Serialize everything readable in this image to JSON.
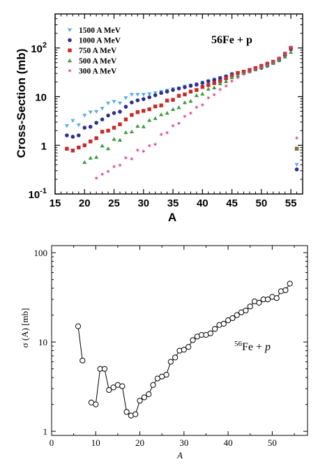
{
  "chart_data": [
    {
      "type": "scatter",
      "title": "",
      "annotation": {
        "nucleus": "56",
        "rest": "Fe + p"
      },
      "xlabel": "A",
      "ylabel": "Cross-Section (mb)",
      "xlim": [
        15,
        57
      ],
      "ylim": [
        0.1,
        500
      ],
      "yscale": "log",
      "x_ticks": [
        "15",
        "20",
        "25",
        "30",
        "35",
        "40",
        "45",
        "50",
        "55"
      ],
      "y_ticks": [
        {
          "value": 0.1,
          "mantissa": "10",
          "exp": "-1"
        },
        {
          "value": 1,
          "mantissa": "1",
          "exp": ""
        },
        {
          "value": 10,
          "mantissa": "10",
          "exp": ""
        },
        {
          "value": 100,
          "mantissa": "10",
          "exp": "2"
        }
      ],
      "grid": false,
      "legend_position": "top-left",
      "series": [
        {
          "name": "1500 A MeV",
          "color": "#5aaee3",
          "marker": "triangle-down",
          "x": [
            17,
            18,
            19,
            20,
            21,
            22,
            23,
            24,
            25,
            26,
            27,
            28,
            29,
            30,
            31,
            32,
            33,
            34,
            35,
            36,
            37,
            38,
            39,
            40,
            41,
            42,
            43,
            44,
            45,
            46,
            47,
            48,
            49,
            50,
            51,
            52,
            53,
            54,
            55,
            56
          ],
          "y": [
            2.5,
            3.2,
            2.6,
            4.1,
            4.8,
            4.9,
            5.7,
            7.3,
            7.9,
            7.3,
            9.4,
            11.0,
            11.0,
            11.0,
            11.3,
            11.8,
            12.6,
            13.4,
            14.3,
            14.8,
            16.2,
            17.1,
            18.1,
            19.6,
            20.8,
            22.7,
            24.4,
            26.0,
            29.2,
            30.3,
            33.0,
            35.0,
            38.0,
            40.0,
            44.0,
            50.0,
            58.0,
            72.0,
            96.0,
            0.4
          ]
        },
        {
          "name": "1000 A MeV",
          "color": "#2f2f8f",
          "marker": "circle",
          "x": [
            17,
            18,
            19,
            20,
            21,
            22,
            23,
            24,
            25,
            26,
            27,
            28,
            29,
            30,
            31,
            32,
            33,
            34,
            35,
            36,
            37,
            38,
            39,
            40,
            41,
            42,
            43,
            44,
            45,
            46,
            47,
            48,
            49,
            50,
            51,
            52,
            53,
            54,
            55,
            56
          ],
          "y": [
            1.6,
            1.5,
            1.6,
            2.3,
            2.4,
            2.9,
            3.4,
            4.1,
            4.6,
            4.9,
            6.2,
            7.6,
            8.4,
            8.9,
            9.7,
            10.7,
            11.9,
            12.7,
            13.7,
            14.7,
            15.6,
            16.7,
            17.6,
            19.0,
            20.7,
            22.0,
            24.0,
            26.0,
            29.0,
            30.0,
            32.0,
            34.0,
            37.0,
            39.0,
            43.0,
            49.0,
            56.0,
            70.0,
            94.0,
            0.32
          ]
        },
        {
          "name": "750 A MeV",
          "color": "#c82a2a",
          "marker": "square",
          "x": [
            17,
            18,
            19,
            20,
            21,
            22,
            23,
            24,
            25,
            26,
            27,
            28,
            29,
            30,
            31,
            32,
            33,
            34,
            35,
            36,
            37,
            38,
            39,
            40,
            41,
            42,
            43,
            44,
            45,
            46,
            47,
            48,
            49,
            50,
            51,
            52,
            53,
            54,
            55,
            56
          ],
          "y": [
            0.85,
            0.78,
            0.9,
            1.0,
            1.2,
            1.4,
            1.9,
            2.0,
            2.3,
            2.7,
            3.4,
            4.2,
            4.8,
            5.1,
            5.5,
            6.3,
            6.6,
            8.3,
            8.6,
            10.4,
            11.1,
            12.7,
            13.7,
            15.8,
            17.3,
            19.0,
            20.9,
            23.8,
            27.2,
            30.8,
            32.6,
            35.3,
            38.6,
            42.9,
            47.6,
            52.0,
            60.0,
            76.0,
            100.0,
            0.85
          ]
        },
        {
          "name": "500 A MeV",
          "color": "#3e9a3e",
          "marker": "triangle-up",
          "x": [
            20,
            21,
            22,
            23,
            24,
            25,
            26,
            27,
            28,
            29,
            30,
            31,
            32,
            33,
            34,
            35,
            36,
            37,
            38,
            39,
            40,
            41,
            42,
            43,
            44,
            45,
            46,
            47,
            48,
            49,
            50,
            51,
            52,
            53,
            54,
            55,
            56
          ],
          "y": [
            0.45,
            0.55,
            0.57,
            0.98,
            0.86,
            1.34,
            1.29,
            1.84,
            1.91,
            2.48,
            2.43,
            3.28,
            3.6,
            4.3,
            4.6,
            5.5,
            6.0,
            7.6,
            8.1,
            10.6,
            11.4,
            14.4,
            15.3,
            18.6,
            20.6,
            24.8,
            27.2,
            30.6,
            33.0,
            36.0,
            40.0,
            44.0,
            49.0,
            56.0,
            66.0,
            82.0,
            0.85
          ]
        },
        {
          "name": "300 A MeV",
          "color": "#d03a8a",
          "marker": "star",
          "x": [
            22,
            23,
            24,
            25,
            26,
            27,
            28,
            29,
            30,
            31,
            32,
            33,
            34,
            35,
            36,
            37,
            38,
            39,
            40,
            41,
            42,
            43,
            44,
            45,
            46,
            47,
            48,
            49,
            50,
            51,
            52,
            53,
            54,
            55,
            56
          ],
          "y": [
            0.21,
            0.25,
            0.29,
            0.36,
            0.39,
            0.55,
            0.52,
            0.79,
            0.75,
            0.98,
            1.04,
            1.66,
            1.8,
            2.5,
            2.8,
            3.9,
            4.5,
            6.0,
            6.7,
            9.3,
            10.9,
            13.9,
            16.5,
            20.6,
            24.2,
            28.6,
            32.4,
            36.2,
            40.0,
            45.0,
            52.0,
            62.0,
            76.0,
            104.0,
            1.4
          ]
        }
      ]
    },
    {
      "type": "line",
      "title": "",
      "annotation": {
        "nucleus": "56",
        "rest": "Fe + ",
        "italic": "p"
      },
      "xlabel": "A",
      "ylabel": "σ (A) [mb]",
      "xlim": [
        0,
        58
      ],
      "ylim": [
        0.9,
        120
      ],
      "yscale": "log",
      "x_ticks": [
        "0",
        "10",
        "20",
        "30",
        "40",
        "50"
      ],
      "y_ticks": [
        "1",
        "10",
        "100"
      ],
      "grid": false,
      "series": [
        {
          "marker": "open-circle",
          "segments": [
            {
              "x": [
                6,
                7
              ],
              "y": [
                15.0,
                6.2
              ]
            },
            {
              "x": [
                9,
                10,
                11,
                12,
                13,
                14,
                15,
                16,
                17,
                18,
                19,
                20,
                21,
                22,
                23,
                24,
                25,
                26,
                27,
                28,
                29,
                30,
                31,
                32,
                33,
                34,
                35,
                36,
                37,
                38,
                39,
                40,
                41,
                42,
                43,
                44,
                45,
                46,
                47,
                48,
                49,
                50,
                51,
                52,
                53,
                54
              ],
              "y": [
                2.1,
                2.0,
                5.0,
                5.0,
                2.9,
                3.1,
                3.3,
                3.2,
                1.65,
                1.5,
                1.55,
                2.2,
                2.4,
                2.6,
                3.3,
                3.9,
                4.1,
                4.3,
                6.0,
                6.7,
                8.0,
                8.2,
                8.8,
                10.5,
                11.5,
                12.0,
                12.0,
                12.5,
                14.0,
                15.5,
                16.0,
                17.5,
                18.5,
                20.0,
                21.5,
                22.5,
                25.0,
                28.5,
                27.5,
                30.0,
                30.0,
                32.0,
                31.0,
                37.0,
                38.0,
                45.0
              ]
            }
          ]
        }
      ]
    }
  ]
}
